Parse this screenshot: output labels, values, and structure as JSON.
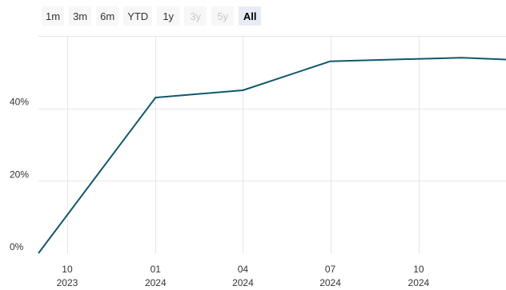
{
  "range_selector": {
    "buttons": [
      {
        "label": "1m",
        "state": "normal"
      },
      {
        "label": "3m",
        "state": "normal"
      },
      {
        "label": "6m",
        "state": "normal"
      },
      {
        "label": "YTD",
        "state": "normal"
      },
      {
        "label": "1y",
        "state": "normal"
      },
      {
        "label": "3y",
        "state": "disabled"
      },
      {
        "label": "5y",
        "state": "disabled"
      },
      {
        "label": "All",
        "state": "selected"
      }
    ]
  },
  "chart_data": {
    "type": "line",
    "title": "",
    "xlabel": "",
    "ylabel": "",
    "grid": true,
    "line_color": "#10586b",
    "xlim": [
      "2023-09-01",
      "2024-12-31"
    ],
    "ylim": [
      0,
      60
    ],
    "y_ticks": [
      {
        "value": 0,
        "label": "0%"
      },
      {
        "value": 20,
        "label": "20%"
      },
      {
        "value": 40,
        "label": "40%"
      }
    ],
    "x_ticks": [
      {
        "date": "2023-10-01",
        "label": "10",
        "sublabel": "2023"
      },
      {
        "date": "2024-01-01",
        "label": "01",
        "sublabel": "2024"
      },
      {
        "date": "2024-04-01",
        "label": "04",
        "sublabel": "2024"
      },
      {
        "date": "2024-07-01",
        "label": "07",
        "sublabel": "2024"
      },
      {
        "date": "2024-10-01",
        "label": "10",
        "sublabel": "2024"
      }
    ],
    "series": [
      {
        "x": [
          "2023-09-01",
          "2024-01-01",
          "2024-04-01",
          "2024-07-01",
          "2024-11-15",
          "2024-12-31"
        ],
        "y": [
          0,
          43.0,
          45.0,
          53.0,
          54.0,
          53.5
        ]
      }
    ]
  }
}
